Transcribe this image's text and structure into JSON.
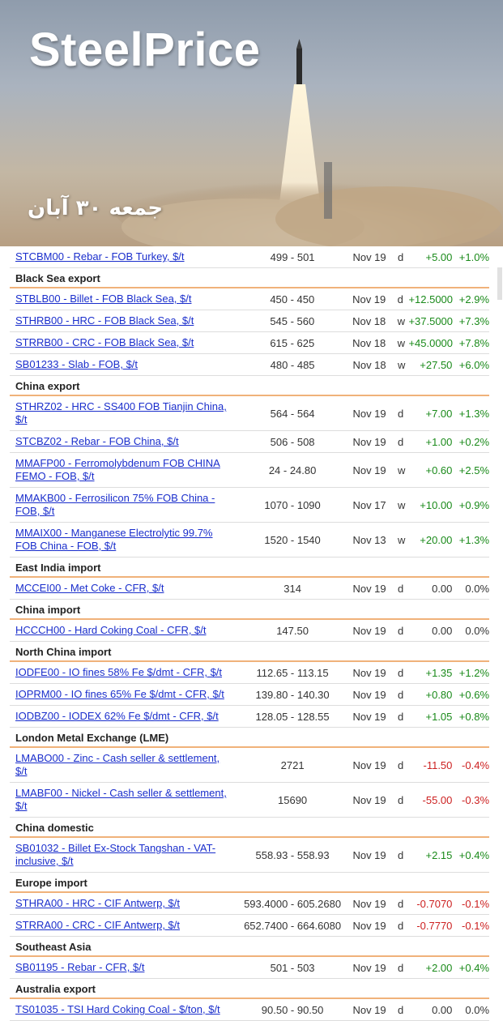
{
  "banner": {
    "brand": "SteelPrice",
    "date_fa": "جمعه ۳۰ آبان"
  },
  "rows": [
    {
      "kind": "row",
      "name": "STCBM00 - Rebar - FOB Turkey, $/t",
      "price": "499 - 501",
      "date": "Nov 19",
      "per": "d",
      "chg": "+5.00",
      "pct": "+1.0%",
      "dir": "pos",
      "h": 26
    },
    {
      "kind": "section",
      "title": "Black Sea export"
    },
    {
      "kind": "row",
      "name": "STBLB00 - Billet - FOB Black Sea, $/t",
      "price": "450 - 450",
      "date": "Nov 19",
      "per": "d",
      "chg": "+12.5000",
      "pct": "+2.9%",
      "dir": "pos",
      "h": 26
    },
    {
      "kind": "row",
      "name": "STHRB00 - HRC - FOB Black Sea, $/t",
      "price": "545 - 560",
      "date": "Nov 18",
      "per": "w",
      "chg": "+37.5000",
      "pct": "+7.3%",
      "dir": "pos",
      "h": 26
    },
    {
      "kind": "row",
      "name": "STRRB00 - CRC - FOB Black Sea, $/t",
      "price": "615 - 625",
      "date": "Nov 18",
      "per": "w",
      "chg": "+45.0000",
      "pct": "+7.8%",
      "dir": "pos",
      "h": 26
    },
    {
      "kind": "row",
      "name": "SB01233 - Slab - FOB, $/t",
      "price": "480 - 485",
      "date": "Nov 18",
      "per": "w",
      "chg": "+27.50",
      "pct": "+6.0%",
      "dir": "pos",
      "h": 26
    },
    {
      "kind": "section",
      "title": "China export"
    },
    {
      "kind": "row",
      "name": "STHRZ02 - HRC - SS400 FOB Tianjin China, $/t",
      "price": "564 - 564",
      "date": "Nov 19",
      "per": "d",
      "chg": "+7.00",
      "pct": "+1.3%",
      "dir": "pos",
      "h": 42
    },
    {
      "kind": "row",
      "name": "STCBZ02 - Rebar - FOB China, $/t",
      "price": "506 - 508",
      "date": "Nov 19",
      "per": "d",
      "chg": "+1.00",
      "pct": "+0.2%",
      "dir": "pos",
      "h": 26
    },
    {
      "kind": "row",
      "name": "MMAFP00 - Ferromolybdenum FOB CHINA FEMO - FOB, $/t",
      "price": "24 - 24.80",
      "date": "Nov 19",
      "per": "w",
      "chg": "+0.60",
      "pct": "+2.5%",
      "dir": "pos",
      "h": 42
    },
    {
      "kind": "row",
      "name": "MMAKB00 - Ferrosilicon 75% FOB China - FOB, $/t",
      "price": "1070 - 1090",
      "date": "Nov 17",
      "per": "w",
      "chg": "+10.00",
      "pct": "+0.9%",
      "dir": "pos",
      "h": 42
    },
    {
      "kind": "row",
      "name": "MMAIX00 - Manganese Electrolytic 99.7% FOB China - FOB, $/t",
      "price": "1520 - 1540",
      "date": "Nov 13",
      "per": "w",
      "chg": "+20.00",
      "pct": "+1.3%",
      "dir": "pos",
      "h": 42
    },
    {
      "kind": "section",
      "title": "East India import"
    },
    {
      "kind": "row",
      "name": "MCCEI00 - Met Coke - CFR, $/t",
      "price": "314",
      "date": "Nov 19",
      "per": "d",
      "chg": "0.00",
      "pct": "0.0%",
      "dir": "zero",
      "h": 26
    },
    {
      "kind": "section",
      "title": "China import"
    },
    {
      "kind": "row",
      "name": "HCCCH00 - Hard Coking Coal - CFR, $/t",
      "price": "147.50",
      "date": "Nov 19",
      "per": "d",
      "chg": "0.00",
      "pct": "0.0%",
      "dir": "zero",
      "h": 26
    },
    {
      "kind": "section",
      "title": "North China import"
    },
    {
      "kind": "row",
      "name": "IODFE00 - IO fines 58% Fe $/dmt - CFR, $/t",
      "price": "112.65 - 113.15",
      "date": "Nov 19",
      "per": "d",
      "chg": "+1.35",
      "pct": "+1.2%",
      "dir": "pos",
      "h": 26
    },
    {
      "kind": "row",
      "name": "IOPRM00 - IO fines 65% Fe $/dmt - CFR, $/t",
      "price": "139.80 - 140.30",
      "date": "Nov 19",
      "per": "d",
      "chg": "+0.80",
      "pct": "+0.6%",
      "dir": "pos",
      "h": 26
    },
    {
      "kind": "row",
      "name": "IODBZ00 - IODEX 62% Fe $/dmt - CFR, $/t",
      "price": "128.05 - 128.55",
      "date": "Nov 19",
      "per": "d",
      "chg": "+1.05",
      "pct": "+0.8%",
      "dir": "pos",
      "h": 26
    },
    {
      "kind": "section",
      "title": "London Metal Exchange (LME)"
    },
    {
      "kind": "row",
      "name": "LMABO00 - Zinc - Cash seller & settlement, $/t",
      "price": "2721",
      "date": "Nov 19",
      "per": "d",
      "chg": "-11.50",
      "pct": "-0.4%",
      "dir": "neg",
      "h": 42
    },
    {
      "kind": "row",
      "name": "LMABF00 - Nickel - Cash seller & settlement, $/t",
      "price": "15690",
      "date": "Nov 19",
      "per": "d",
      "chg": "-55.00",
      "pct": "-0.3%",
      "dir": "neg",
      "h": 42
    },
    {
      "kind": "section",
      "title": "China domestic"
    },
    {
      "kind": "row",
      "name": "SB01032 - Billet Ex-Stock Tangshan - VAT-inclusive, $/t",
      "price": "558.93 - 558.93",
      "date": "Nov 19",
      "per": "d",
      "chg": "+2.15",
      "pct": "+0.4%",
      "dir": "pos",
      "h": 42
    },
    {
      "kind": "section",
      "title": "Europe import"
    },
    {
      "kind": "row",
      "name": "STHRA00 - HRC - CIF Antwerp, $/t",
      "price": "593.4000 - 605.2680",
      "date": "Nov 19",
      "per": "d",
      "chg": "-0.7070",
      "pct": "-0.1%",
      "dir": "neg",
      "h": 26
    },
    {
      "kind": "row",
      "name": "STRRA00 - CRC - CIF Antwerp, $/t",
      "price": "652.7400 - 664.6080",
      "date": "Nov 19",
      "per": "d",
      "chg": "-0.7770",
      "pct": "-0.1%",
      "dir": "neg",
      "h": 26
    },
    {
      "kind": "section",
      "title": "Southeast Asia"
    },
    {
      "kind": "row",
      "name": "SB01195 - Rebar - CFR, $/t",
      "price": "501 - 503",
      "date": "Nov 19",
      "per": "d",
      "chg": "+2.00",
      "pct": "+0.4%",
      "dir": "pos",
      "h": 26
    },
    {
      "kind": "section",
      "title": "Australia export"
    },
    {
      "kind": "row",
      "name": "TS01035 - TSI Hard Coking Coal - $/ton, $/t",
      "price": "90.50 - 90.50",
      "date": "Nov 19",
      "per": "d",
      "chg": "0.00",
      "pct": "0.0%",
      "dir": "zero",
      "h": 26
    }
  ]
}
